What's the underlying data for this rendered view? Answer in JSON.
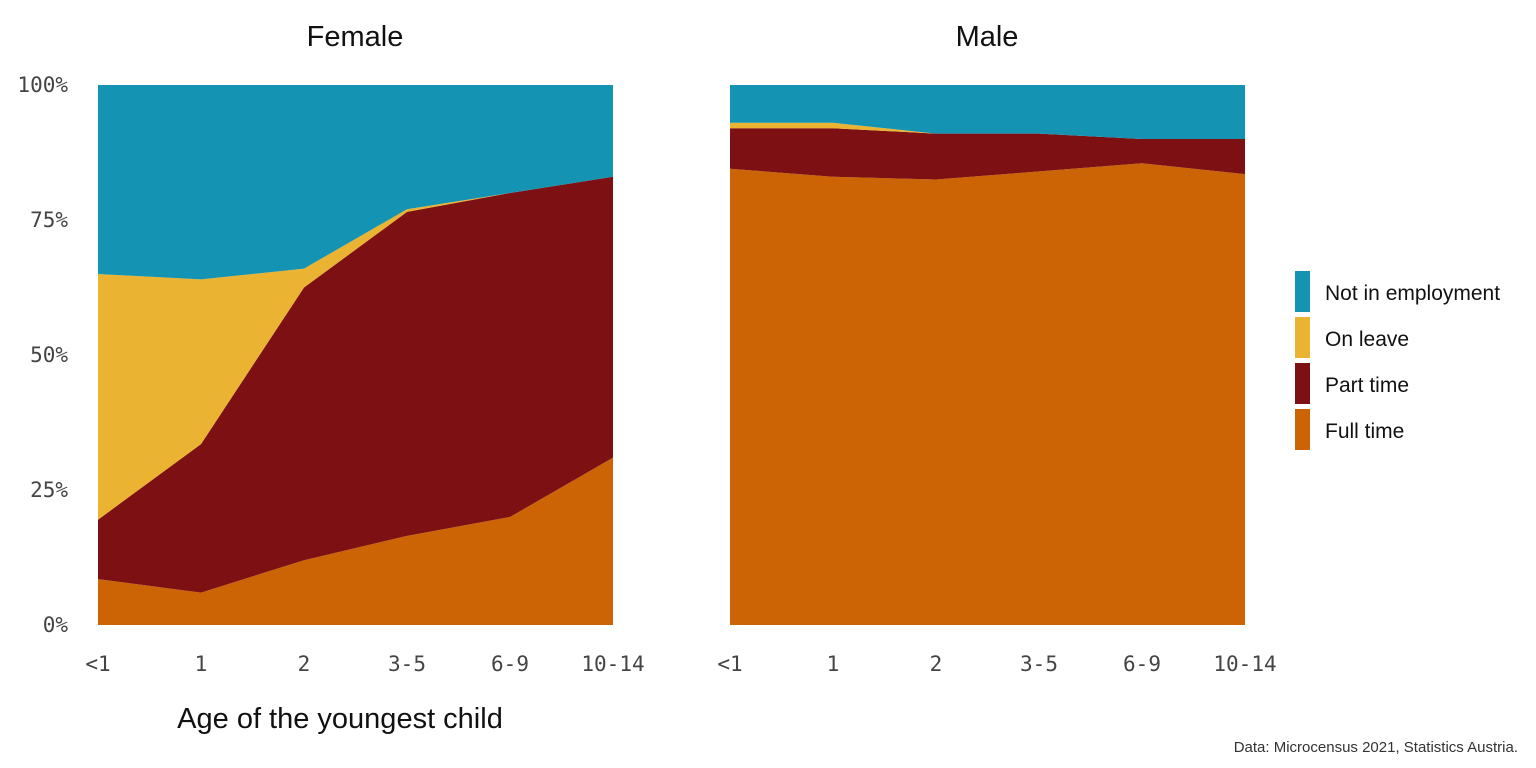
{
  "chart_data": {
    "type": "area",
    "stacked": true,
    "normalized": true,
    "categories": [
      "<1",
      "1",
      "2",
      "3-5",
      "6-9",
      "10-14"
    ],
    "xlabel": "Age of the youngest child",
    "yticks": [
      "0%",
      "25%",
      "50%",
      "75%",
      "100%"
    ],
    "ylim": [
      0,
      100
    ],
    "grid": false,
    "legend_position": "right",
    "caption": "Data: Microcensus 2021, Statistics Austria.",
    "series_order": [
      "Full time",
      "Part time",
      "On leave",
      "Not in employment"
    ],
    "legend_order": [
      "Not in employment",
      "On leave",
      "Part time",
      "Full time"
    ],
    "colors": {
      "Full time": "#cc6405",
      "Part time": "#7d1013",
      "On leave": "#eab332",
      "Not in employment": "#1593b2"
    },
    "panels": [
      {
        "title": "Female",
        "series": [
          {
            "name": "Full time",
            "values": [
              8.5,
              6,
              12,
              16.5,
              20,
              31
            ]
          },
          {
            "name": "Part time",
            "values": [
              11,
              27.5,
              50.5,
              60,
              60,
              52
            ]
          },
          {
            "name": "On leave",
            "values": [
              45.5,
              30.5,
              3.5,
              0.5,
              0,
              0
            ]
          },
          {
            "name": "Not in employment",
            "values": [
              35,
              36,
              34,
              23,
              20,
              17
            ]
          }
        ]
      },
      {
        "title": "Male",
        "series": [
          {
            "name": "Full time",
            "values": [
              84.5,
              83,
              82.5,
              84,
              85.5,
              83.5
            ]
          },
          {
            "name": "Part time",
            "values": [
              7.5,
              9,
              8.5,
              7,
              4.5,
              6.5
            ]
          },
          {
            "name": "On leave",
            "values": [
              1,
              1,
              0,
              0,
              0,
              0
            ]
          },
          {
            "name": "Not in employment",
            "values": [
              7,
              7,
              9,
              9,
              10,
              10
            ]
          }
        ]
      }
    ]
  }
}
